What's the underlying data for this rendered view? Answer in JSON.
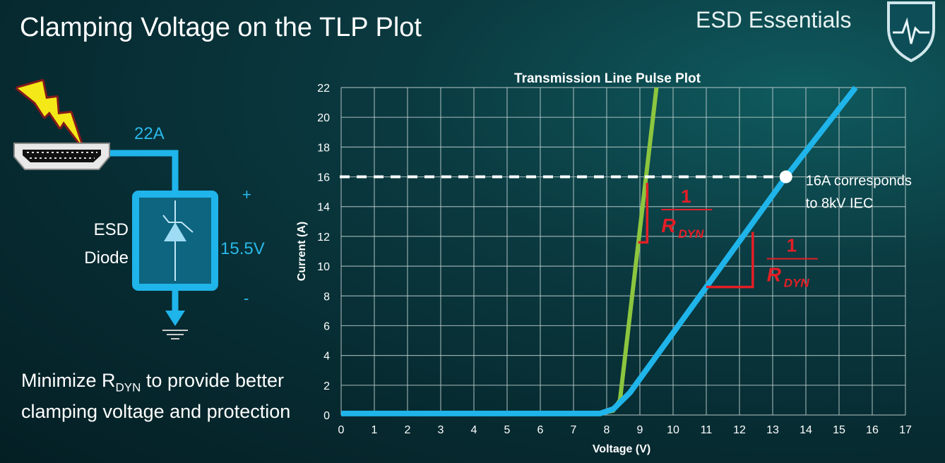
{
  "slide": {
    "title": "Clamping Voltage on the TLP Plot",
    "brand": "ESD Essentials",
    "bottom_text": {
      "pre": "Minimize R",
      "sub": "DYN",
      "post": " to provide better clamping voltage and protection"
    }
  },
  "diagram": {
    "current_label": "22A",
    "device_label_line1": "ESD",
    "device_label_line2": "Diode",
    "voltage_label": "15.5V",
    "plus": "+",
    "minus": "-"
  },
  "colors": {
    "accent": "#1fb4ea",
    "green_curve": "#8cc63f",
    "annotation_red": "#e41e26",
    "bolt": "#f5e818"
  },
  "chart_data": {
    "type": "line",
    "title": "Transmission Line Pulse Plot",
    "xlabel": "Voltage (V)",
    "ylabel": "Current (A)",
    "xlim": [
      0,
      17
    ],
    "ylim": [
      0,
      22
    ],
    "xticks": [
      0,
      1,
      2,
      3,
      4,
      5,
      6,
      7,
      8,
      9,
      10,
      11,
      12,
      13,
      14,
      15,
      16,
      17
    ],
    "yticks": [
      0,
      2,
      4,
      6,
      8,
      10,
      12,
      14,
      16,
      18,
      20,
      22
    ],
    "grid": true,
    "series": [
      {
        "color": "#8cc63f",
        "x": [
          0,
          7.8,
          8.2,
          8.4,
          9.5
        ],
        "y": [
          0.1,
          0.1,
          0.3,
          1.0,
          22
        ]
      },
      {
        "color": "#1fb4ea",
        "x": [
          0,
          7.8,
          8.2,
          8.7,
          13.4,
          15.5
        ],
        "y": [
          0.1,
          0.1,
          0.4,
          1.5,
          16,
          22
        ]
      }
    ],
    "reference_line": {
      "y": 16,
      "x_end": 13.4,
      "style": "dashed"
    },
    "marker": {
      "x": 13.4,
      "y": 16
    },
    "annotation": {
      "line1": "16A corresponds",
      "line2": "to 8kV IEC"
    },
    "slope_labels": [
      {
        "numerator": "1",
        "denominator": "R",
        "sub": "DYN",
        "v": [
          9.22,
          9.22,
          8.95
        ],
        "i": [
          15.6,
          11.6,
          11.6
        ]
      },
      {
        "numerator": "1",
        "denominator": "R",
        "sub": "DYN",
        "v": [
          12.4,
          12.4,
          11.0
        ],
        "i": [
          12.3,
          8.6,
          8.6
        ]
      }
    ]
  }
}
